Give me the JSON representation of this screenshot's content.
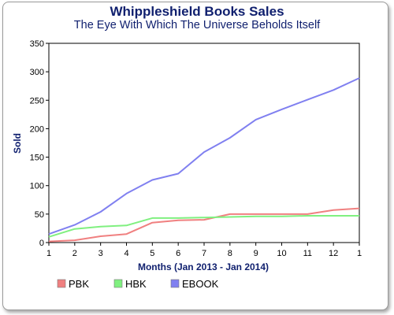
{
  "chart_data": {
    "type": "line",
    "title": "Whippleshield Books Sales",
    "subtitle": "The Eye With Which The Universe Beholds Itself",
    "xlabel": "Months (Jan 2013 - Jan 2014)",
    "ylabel": "Sold",
    "x": [
      "1",
      "2",
      "3",
      "4",
      "5",
      "6",
      "7",
      "8",
      "9",
      "10",
      "11",
      "12",
      "1"
    ],
    "ylim": [
      0,
      350
    ],
    "yticks": [
      0,
      50,
      100,
      150,
      200,
      250,
      300,
      350
    ],
    "grid": false,
    "legend_position": "bottom-left",
    "series": [
      {
        "name": "PBK",
        "color": "#f08080",
        "values": [
          2,
          4,
          11,
          15,
          35,
          39,
          40,
          50,
          50,
          50,
          50,
          57,
          60
        ]
      },
      {
        "name": "HBK",
        "color": "#80f080",
        "values": [
          10,
          24,
          28,
          30,
          43,
          43,
          44,
          45,
          46,
          46,
          47,
          47,
          47
        ]
      },
      {
        "name": "EBOOK",
        "color": "#8080f0",
        "values": [
          15,
          31,
          54,
          86,
          110,
          121,
          159,
          184,
          216,
          234,
          251,
          268,
          289
        ]
      }
    ]
  }
}
